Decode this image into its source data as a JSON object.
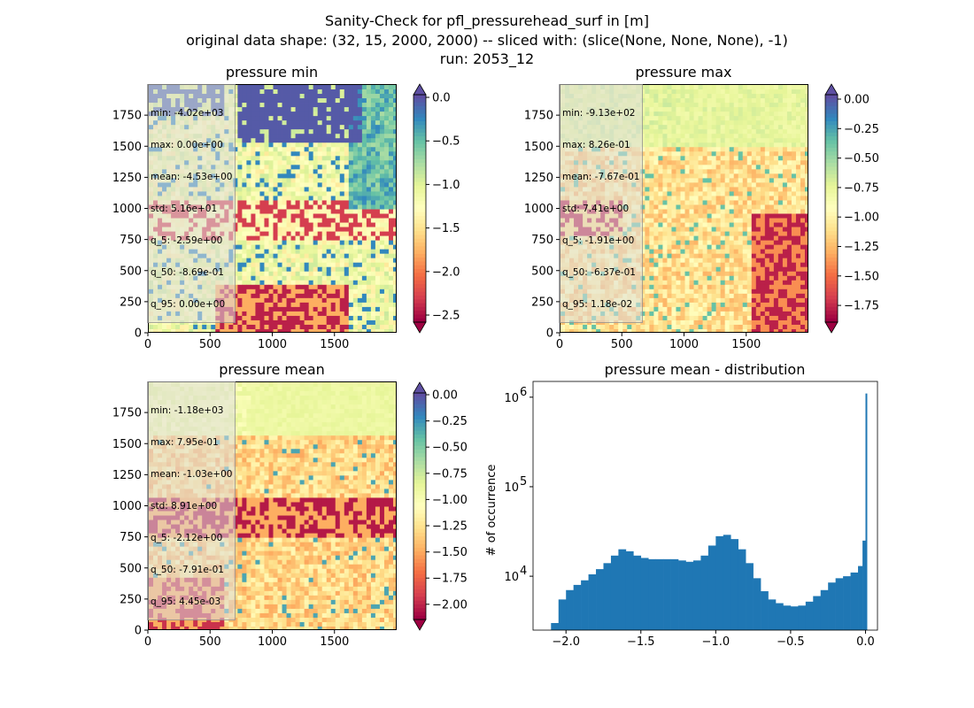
{
  "figure": {
    "title_lines": [
      "Sanity-Check for pfl_pressurehead_surf in [m]",
      "original data shape: (32, 15, 2000, 2000) -- sliced with: (slice(None, None, None), -1)",
      "run: 2053_12"
    ]
  },
  "panels": [
    {
      "title": "pressure min",
      "x_ticks": [
        "0",
        "500",
        "1000",
        "1500"
      ],
      "y_ticks": [
        "0",
        "250",
        "500",
        "750",
        "1000",
        "1250",
        "1500",
        "1750"
      ],
      "colorbar": {
        "ticks": [
          "0.0",
          "−0.5",
          "−1.0",
          "−1.5",
          "−2.0",
          "−2.5"
        ],
        "colormap": "Spectral",
        "extend": "both"
      },
      "stats": [
        "min: -4.02e+03",
        "max: 0.00e+00",
        "mean: -4.53e+00",
        "std: 5.16e+01",
        "q_5: -2.59e+00",
        "q_50: -8.69e-01",
        "q_95: 0.00e+00"
      ]
    },
    {
      "title": "pressure max",
      "x_ticks": [
        "0",
        "500",
        "1000",
        "1500"
      ],
      "y_ticks": [
        "0",
        "250",
        "500",
        "750",
        "1000",
        "1250",
        "1500",
        "1750"
      ],
      "colorbar": {
        "ticks": [
          "0.00",
          "−0.25",
          "−0.50",
          "−0.75",
          "−1.00",
          "−1.25",
          "−1.50",
          "−1.75"
        ],
        "colormap": "Spectral",
        "extend": "both"
      },
      "stats": [
        "min: -9.13e+02",
        "max: 8.26e-01",
        "mean: -7.67e-01",
        "std: 7.41e+00",
        "q_5: -1.91e+00",
        "q_50: -6.37e-01",
        "q_95: 1.18e-02"
      ]
    },
    {
      "title": "pressure mean",
      "x_ticks": [
        "0",
        "500",
        "1000",
        "1500"
      ],
      "y_ticks": [
        "0",
        "250",
        "500",
        "750",
        "1000",
        "1250",
        "1500",
        "1750"
      ],
      "colorbar": {
        "ticks": [
          "0.00",
          "−0.25",
          "−0.50",
          "−0.75",
          "−1.00",
          "−1.25",
          "−1.50",
          "−1.75",
          "−2.00"
        ],
        "colormap": "Spectral",
        "extend": "both"
      },
      "stats": [
        "min: -1.18e+03",
        "max: 7.95e-01",
        "mean: -1.03e+00",
        "std: 8.91e+00",
        "q_5: -2.12e+00",
        "q_50: -7.91e-01",
        "q_95: 4.45e-03"
      ]
    }
  ],
  "histogram": {
    "title": "pressure mean - distribution",
    "ylabel": "# of occurrence",
    "x_ticks": [
      "−2.0",
      "−1.5",
      "−1.0",
      "−0.5",
      "0.0"
    ],
    "y_ticks": [
      "10",
      "10",
      "10"
    ],
    "y_tick_exponents": [
      "4",
      "5",
      "6"
    ],
    "color": "#1f77b4"
  },
  "chart_data": [
    {
      "type": "heatmap",
      "title": "pressure min",
      "xlim": [
        0,
        2000
      ],
      "ylim": [
        0,
        2000
      ],
      "colorbar_range": [
        -2.6,
        0.0
      ],
      "colormap": "Spectral"
    },
    {
      "type": "heatmap",
      "title": "pressure max",
      "xlim": [
        0,
        2000
      ],
      "ylim": [
        0,
        2000
      ],
      "colorbar_range": [
        -1.91,
        0.0118
      ],
      "colormap": "Spectral"
    },
    {
      "type": "heatmap",
      "title": "pressure mean",
      "xlim": [
        0,
        2000
      ],
      "ylim": [
        0,
        2000
      ],
      "colorbar_range": [
        -2.12,
        0.0045
      ],
      "colormap": "Spectral"
    },
    {
      "type": "bar",
      "title": "pressure mean - distribution",
      "ylabel": "# of occurrence",
      "y_scale": "log",
      "xlim": [
        -2.22,
        0.08
      ],
      "ylim": [
        2500,
        1500000
      ],
      "x": [
        -2.1,
        -2.05,
        -2.0,
        -1.95,
        -1.9,
        -1.85,
        -1.8,
        -1.75,
        -1.7,
        -1.65,
        -1.6,
        -1.55,
        -1.5,
        -1.45,
        -1.4,
        -1.35,
        -1.3,
        -1.25,
        -1.2,
        -1.15,
        -1.1,
        -1.05,
        -1.0,
        -0.95,
        -0.9,
        -0.85,
        -0.8,
        -0.75,
        -0.7,
        -0.65,
        -0.6,
        -0.55,
        -0.5,
        -0.45,
        -0.4,
        -0.35,
        -0.3,
        -0.25,
        -0.2,
        -0.15,
        -0.1,
        -0.05,
        -0.02,
        0.0
      ],
      "values": [
        3000,
        5500,
        7000,
        8000,
        9000,
        10500,
        12000,
        14000,
        17000,
        20000,
        19000,
        17000,
        16000,
        15500,
        15500,
        15500,
        15500,
        15000,
        14500,
        15000,
        17000,
        22000,
        28000,
        29000,
        26000,
        20000,
        14000,
        9500,
        6800,
        5500,
        5000,
        4700,
        4600,
        4700,
        5200,
        6000,
        7000,
        8500,
        9500,
        10000,
        11000,
        13000,
        25000,
        1100000
      ]
    }
  ]
}
